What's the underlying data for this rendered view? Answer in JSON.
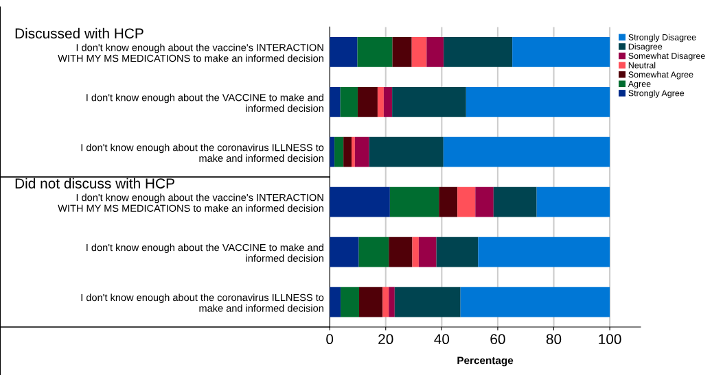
{
  "chart_data": {
    "type": "bar",
    "orientation": "horizontal",
    "stacked": true,
    "xlabel": "Percentage",
    "annotations": [
      "Discussed with HCP",
      "Did not discuss with HCP"
    ],
    "categories": [
      "I don't know enough about the vaccine's INTERACTION\nWITH MY MS MEDICATIONS to make an informed decision",
      "I don't know enough about the VACCINE to make and\ninformed decision",
      "I don't know enough about the coronavirus ILLNESS to\nmake and informed decision",
      "I don't know enough about the vaccine's INTERACTION\nWITH MY MS MEDICATIONS to make an informed decision",
      "I don't know enough about the VACCINE to make and\ninformed decision",
      "I don't know enough about the coronavirus ILLNESS to\nmake and informed decision"
    ],
    "series": [
      {
        "name": "Strongly Agree",
        "color": "#002a8a",
        "values": [
          9.9,
          3.8,
          1.7,
          21.5,
          10.4,
          3.9
        ]
      },
      {
        "name": "Agree",
        "color": "#006d30",
        "values": [
          12.5,
          6.2,
          3.2,
          17.5,
          10.7,
          6.6
        ]
      },
      {
        "name": "Somewhat Agree",
        "color": "#500008",
        "values": [
          6.9,
          7.1,
          2.9,
          6.6,
          8.4,
          8.4
        ]
      },
      {
        "name": "Neutral",
        "color": "#ff5059",
        "values": [
          5.3,
          2.2,
          1.2,
          6.4,
          2.3,
          2.2
        ]
      },
      {
        "name": "Somewhat Disagree",
        "color": "#990048",
        "values": [
          6.1,
          3.0,
          5.1,
          6.5,
          6.3,
          2.1
        ]
      },
      {
        "name": "Disagree",
        "color": "#004450",
        "values": [
          24.5,
          26.4,
          26.5,
          15.4,
          14.9,
          23.5
        ]
      },
      {
        "name": "Strongly Disagree",
        "color": "#0077d6",
        "values": [
          34.8,
          51.3,
          59.4,
          26.1,
          47.0,
          53.3
        ]
      }
    ],
    "xlim": [
      0,
      111
    ],
    "xticks": [
      0,
      20,
      40,
      60,
      80,
      100
    ],
    "grid": "x",
    "legend": "top right"
  }
}
